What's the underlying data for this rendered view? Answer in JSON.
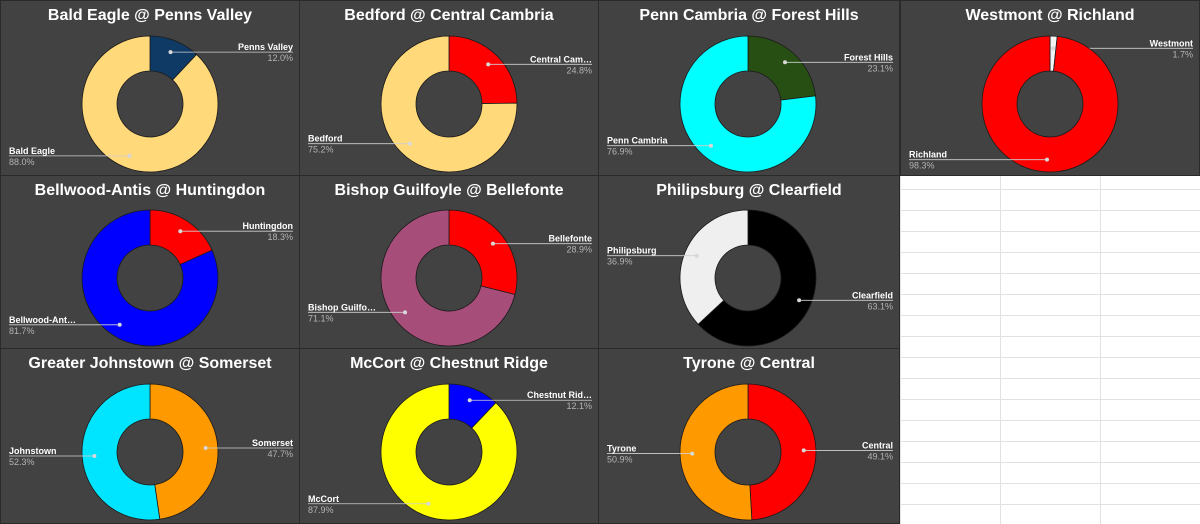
{
  "chart_data": [
    {
      "type": "pie",
      "title": "Bald Eagle @ Penns Valley",
      "slices": [
        {
          "name": "Penns Valley",
          "label": "Penns Valley",
          "value": 12.0,
          "pct": "12.0%",
          "color": "#0f3a66"
        },
        {
          "name": "Bald Eagle",
          "label": "Bald Eagle",
          "value": 88.0,
          "pct": "88.0%",
          "color": "#ffd97a"
        }
      ]
    },
    {
      "type": "pie",
      "title": "Bedford @ Central Cambria",
      "slices": [
        {
          "name": "Central Cambria",
          "label": "Central Cam…",
          "value": 24.8,
          "pct": "24.8%",
          "color": "#ff0000"
        },
        {
          "name": "Bedford",
          "label": "Bedford",
          "value": 75.2,
          "pct": "75.2%",
          "color": "#ffd97a"
        }
      ]
    },
    {
      "type": "pie",
      "title": "Penn Cambria @ Forest Hills",
      "slices": [
        {
          "name": "Forest Hills",
          "label": "Forest Hills",
          "value": 23.1,
          "pct": "23.1%",
          "color": "#274e13"
        },
        {
          "name": "Penn Cambria",
          "label": "Penn Cambria",
          "value": 76.9,
          "pct": "76.9%",
          "color": "#00ffff"
        }
      ]
    },
    {
      "type": "pie",
      "title": "Westmont @ Richland",
      "slices": [
        {
          "name": "Westmont",
          "label": "Westmont",
          "value": 1.7,
          "pct": "1.7%",
          "color": "#f3f3f3"
        },
        {
          "name": "Richland",
          "label": "Richland",
          "value": 98.3,
          "pct": "98.3%",
          "color": "#ff0000"
        }
      ]
    },
    {
      "type": "pie",
      "title": "Bellwood-Antis @ Huntingdon",
      "slices": [
        {
          "name": "Huntingdon",
          "label": "Huntingdon",
          "value": 18.3,
          "pct": "18.3%",
          "color": "#ff0000"
        },
        {
          "name": "Bellwood-Antis",
          "label": "Bellwood-Ant…",
          "value": 81.7,
          "pct": "81.7%",
          "color": "#0000ff"
        }
      ]
    },
    {
      "type": "pie",
      "title": "Bishop Guilfoyle @ Bellefonte",
      "slices": [
        {
          "name": "Bellefonte",
          "label": "Bellefonte",
          "value": 28.9,
          "pct": "28.9%",
          "color": "#ff0000"
        },
        {
          "name": "Bishop Guilfoyle",
          "label": "Bishop Guilfo…",
          "value": 71.1,
          "pct": "71.1%",
          "color": "#a64d79"
        }
      ]
    },
    {
      "type": "pie",
      "title": "Philipsburg @ Clearfield",
      "slices": [
        {
          "name": "Clearfield",
          "label": "Clearfield",
          "value": 63.1,
          "pct": "63.1%",
          "color": "#000000"
        },
        {
          "name": "Philipsburg",
          "label": "Philipsburg",
          "value": 36.9,
          "pct": "36.9%",
          "color": "#efefef"
        }
      ]
    },
    {
      "type": "pie",
      "title": "Greater Johnstown @ Somerset",
      "slices": [
        {
          "name": "Somerset",
          "label": "Somerset",
          "value": 47.7,
          "pct": "47.7%",
          "color": "#ff9900"
        },
        {
          "name": "Johnstown",
          "label": "Johnstown",
          "value": 52.3,
          "pct": "52.3%",
          "color": "#00e5ff"
        }
      ]
    },
    {
      "type": "pie",
      "title": "McCort @ Chestnut Ridge",
      "slices": [
        {
          "name": "Chestnut Ridge",
          "label": "Chestnut Rid…",
          "value": 12.1,
          "pct": "12.1%",
          "color": "#0000ff"
        },
        {
          "name": "McCort",
          "label": "McCort",
          "value": 87.9,
          "pct": "87.9%",
          "color": "#ffff00"
        }
      ]
    },
    {
      "type": "pie",
      "title": "Tyrone @ Central",
      "slices": [
        {
          "name": "Central",
          "label": "Central",
          "value": 49.1,
          "pct": "49.1%",
          "color": "#ff0000"
        },
        {
          "name": "Tyrone",
          "label": "Tyrone",
          "value": 50.9,
          "pct": "50.9%",
          "color": "#ff9900"
        }
      ]
    }
  ]
}
